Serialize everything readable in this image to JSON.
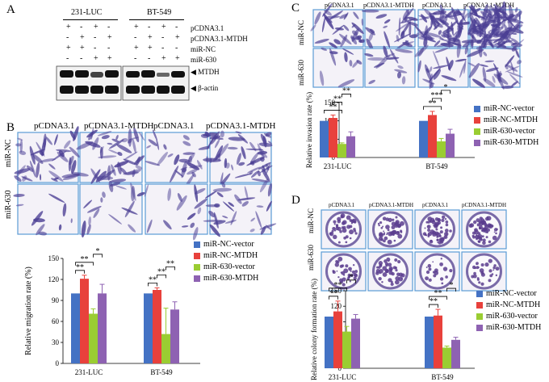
{
  "panels": {
    "A": "A",
    "B": "B",
    "C": "C",
    "D": "D"
  },
  "colors": {
    "nc_vector": "#4472c4",
    "nc_mtdh": "#e8413c",
    "m630_vector": "#9acd32",
    "m630_mtdh": "#8e62b2",
    "frame": "#5b9bd5",
    "stain": "#5a4a9e"
  },
  "panelA": {
    "cell_lines": [
      "231-LUC",
      "BT-549"
    ],
    "row_labels": [
      "pCDNA3.1",
      "pCDNA3.1-MTDH",
      "miR-NC",
      "miR-630"
    ],
    "signs": [
      [
        "+",
        "-",
        "+",
        "-",
        "+",
        "-",
        "+",
        "-"
      ],
      [
        "-",
        "+",
        "-",
        "+",
        "-",
        "+",
        "-",
        "+"
      ],
      [
        "+",
        "+",
        "-",
        "-",
        "+",
        "+",
        "-",
        "-"
      ],
      [
        "-",
        "-",
        "+",
        "+",
        "-",
        "-",
        "+",
        "+"
      ]
    ],
    "blot_labels": [
      "MTDH",
      "β-actin"
    ],
    "arrow": "◀"
  },
  "panelB": {
    "col_headers": [
      "pCDNA3.1",
      "pCDNA3.1-MTDH",
      "pCDNA3.1",
      "pCDNA3.1-MTDH"
    ],
    "row_headers": [
      "miR-NC",
      "miR-630"
    ]
  },
  "panelC": {
    "col_headers": [
      "pCDNA3.1",
      "pCDNA3.1-MTDH",
      "pCDNA3.1",
      "pCDNA3.1-MTDH"
    ],
    "row_headers": [
      "miR-NC",
      "miR-630"
    ]
  },
  "panelD": {
    "col_headers": [
      "pCDNA3.1",
      "pCDNA3.1-MTDH",
      "pCDNA3.1",
      "pCDNA3.1-MTDH"
    ],
    "row_headers": [
      "miR-NC",
      "miR-630"
    ]
  },
  "chart_data": [
    {
      "id": "B",
      "type": "bar",
      "ylabel": "Relative migration rate (%)",
      "categories": [
        "231-LUC",
        "BT-549"
      ],
      "ylim": [
        0,
        150
      ],
      "yticks": [
        0,
        30,
        60,
        90,
        120,
        150
      ],
      "series": [
        {
          "name": "miR-NC-vector",
          "values": [
            100,
            100
          ],
          "err": [
            0,
            0
          ]
        },
        {
          "name": "miR-NC-MTDH",
          "values": [
            121,
            105
          ],
          "err": [
            5,
            3
          ]
        },
        {
          "name": "miR-630-vector",
          "values": [
            71,
            42
          ],
          "err": [
            7,
            37
          ]
        },
        {
          "name": "miR-630-MTDH",
          "values": [
            100,
            77
          ],
          "err": [
            13,
            11
          ]
        }
      ],
      "significance": [
        {
          "group": 0,
          "from": 0,
          "to": 1,
          "label": "**"
        },
        {
          "group": 0,
          "from": 0,
          "to": 2,
          "label": "**"
        },
        {
          "group": 0,
          "from": 2,
          "to": 3,
          "label": "*"
        },
        {
          "group": 1,
          "from": 0,
          "to": 1,
          "label": "**"
        },
        {
          "group": 1,
          "from": 1,
          "to": 2,
          "label": "**"
        },
        {
          "group": 1,
          "from": 2,
          "to": 3,
          "label": "**"
        }
      ]
    },
    {
      "id": "C",
      "type": "bar",
      "ylabel": "Relative invasion rate (%)",
      "categories": [
        "231-LUC",
        "BT-549"
      ],
      "ylim": [
        0,
        150
      ],
      "yticks": [
        0,
        50,
        100,
        150
      ],
      "series": [
        {
          "name": "miR-NC-vector",
          "values": [
            100,
            100
          ],
          "err": [
            0,
            0
          ]
        },
        {
          "name": "miR-NC-MTDH",
          "values": [
            108,
            116
          ],
          "err": [
            8,
            10
          ]
        },
        {
          "name": "miR-630-vector",
          "values": [
            37,
            44
          ],
          "err": [
            3,
            8
          ]
        },
        {
          "name": "miR-630-MTDH",
          "values": [
            58,
            65
          ],
          "err": [
            12,
            12
          ]
        }
      ],
      "significance": [
        {
          "group": 0,
          "from": 0,
          "to": 2,
          "label": "**"
        },
        {
          "group": 0,
          "from": 1,
          "to": 2,
          "label": "**"
        },
        {
          "group": 0,
          "from": 2,
          "to": 3,
          "label": "**"
        },
        {
          "group": 1,
          "from": 0,
          "to": 2,
          "label": "**"
        },
        {
          "group": 1,
          "from": 1,
          "to": 2,
          "label": "***"
        },
        {
          "group": 1,
          "from": 2,
          "to": 3,
          "label": "*"
        }
      ]
    },
    {
      "id": "D",
      "type": "bar",
      "ylabel": "Relative colony formation rate (%)",
      "categories": [
        "231-LUC",
        "BT-549"
      ],
      "ylim": [
        0,
        150
      ],
      "yticks": [
        0,
        30,
        60,
        90,
        120,
        150
      ],
      "series": [
        {
          "name": "miR-NC-vector",
          "values": [
            100,
            100
          ],
          "err": [
            0,
            0
          ]
        },
        {
          "name": "miR-NC-MTDH",
          "values": [
            110,
            102
          ],
          "err": [
            20,
            12
          ]
        },
        {
          "name": "miR-630-vector",
          "values": [
            71,
            40
          ],
          "err": [
            10,
            3
          ]
        },
        {
          "name": "miR-630-MTDH",
          "values": [
            96,
            55
          ],
          "err": [
            8,
            5
          ]
        }
      ],
      "significance": [
        {
          "group": 0,
          "from": 0,
          "to": 1,
          "label": "**"
        },
        {
          "group": 0,
          "from": 0,
          "to": 2,
          "label": "**"
        },
        {
          "group": 0,
          "from": 2,
          "to": 3,
          "label": "*"
        },
        {
          "group": 1,
          "from": 0,
          "to": 1,
          "label": "**"
        },
        {
          "group": 1,
          "from": 0,
          "to": 2,
          "label": "**"
        },
        {
          "group": 1,
          "from": 2,
          "to": 3,
          "label": "*"
        }
      ]
    }
  ]
}
